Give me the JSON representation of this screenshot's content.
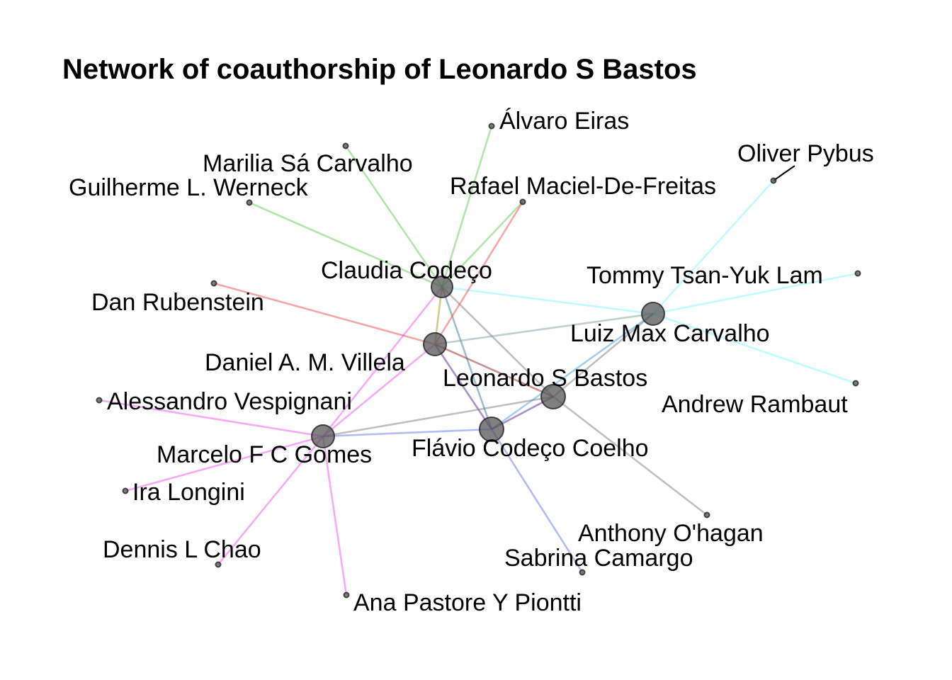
{
  "title": "Network of coauthorship of Leonardo S Bastos",
  "colors": {
    "edge_gray": "#7f7f7f",
    "edge_cyan": "#7ff7ff",
    "edge_green": "#66cc55",
    "edge_red": "#e85050",
    "edge_magenta": "#ef55ef",
    "edge_blue": "#6677ee",
    "edge_steel": "#3a7aa0",
    "edge_olive": "#999922",
    "edge_grayblue": "#7f9f9f",
    "edge_purple": "#552299",
    "edge_darkred": "#992222",
    "edge_skyblue": "#44a0e0",
    "node_fill": "#555555"
  },
  "nodes": [
    {
      "id": "leonardo",
      "label": "Leonardo S Bastos"
    },
    {
      "id": "claudia",
      "label": "Claudia Codeço"
    },
    {
      "id": "daniel",
      "label": "Daniel A. M. Villela"
    },
    {
      "id": "luizmax",
      "label": "Luiz Max Carvalho"
    },
    {
      "id": "flavio",
      "label": "Flávio Codeço Coelho"
    },
    {
      "id": "marcelo",
      "label": "Marcelo F C Gomes"
    },
    {
      "id": "alvaro",
      "label": "Álvaro Eiras"
    },
    {
      "id": "marilia",
      "label": "Marilia Sá Carvalho"
    },
    {
      "id": "guilherme",
      "label": "Guilherme L. Werneck"
    },
    {
      "id": "rafael",
      "label": "Rafael Maciel-De-Freitas"
    },
    {
      "id": "oliver",
      "label": "Oliver Pybus"
    },
    {
      "id": "tommy",
      "label": "Tommy Tsan-Yuk Lam"
    },
    {
      "id": "dan",
      "label": "Dan Rubenstein"
    },
    {
      "id": "andrew",
      "label": "Andrew Rambaut"
    },
    {
      "id": "alessandro",
      "label": "Alessandro Vespignani"
    },
    {
      "id": "ira",
      "label": "Ira Longini"
    },
    {
      "id": "dennis",
      "label": "Dennis L Chao"
    },
    {
      "id": "ana",
      "label": "Ana Pastore Y Piontti"
    },
    {
      "id": "anthony",
      "label": "Anthony O'hagan"
    },
    {
      "id": "sabrina",
      "label": "Sabrina Camargo"
    }
  ],
  "edges": [
    {
      "from": "claudia",
      "to": "alvaro",
      "color": "edge_green"
    },
    {
      "from": "claudia",
      "to": "marilia",
      "color": "edge_green"
    },
    {
      "from": "claudia",
      "to": "guilherme",
      "color": "edge_green"
    },
    {
      "from": "claudia",
      "to": "rafael",
      "color": "edge_green"
    },
    {
      "from": "claudia",
      "to": "luizmax",
      "color": "edge_cyan"
    },
    {
      "from": "claudia",
      "to": "daniel",
      "color": "edge_olive"
    },
    {
      "from": "claudia",
      "to": "flavio",
      "color": "edge_steel"
    },
    {
      "from": "claudia",
      "to": "leonardo",
      "color": "edge_gray"
    },
    {
      "from": "claudia",
      "to": "marcelo",
      "color": "edge_magenta"
    },
    {
      "from": "daniel",
      "to": "rafael",
      "color": "edge_red"
    },
    {
      "from": "daniel",
      "to": "dan",
      "color": "edge_red"
    },
    {
      "from": "daniel",
      "to": "leonardo",
      "color": "edge_darkred"
    },
    {
      "from": "daniel",
      "to": "flavio",
      "color": "edge_purple"
    },
    {
      "from": "daniel",
      "to": "luizmax",
      "color": "edge_grayblue"
    },
    {
      "from": "daniel",
      "to": "marcelo",
      "color": "edge_magenta"
    },
    {
      "from": "luizmax",
      "to": "oliver",
      "color": "edge_cyan"
    },
    {
      "from": "luizmax",
      "to": "tommy",
      "color": "edge_cyan"
    },
    {
      "from": "luizmax",
      "to": "andrew",
      "color": "edge_cyan"
    },
    {
      "from": "luizmax",
      "to": "leonardo",
      "color": "edge_gray"
    },
    {
      "from": "luizmax",
      "to": "flavio",
      "color": "edge_skyblue"
    },
    {
      "from": "leonardo",
      "to": "marcelo",
      "color": "edge_gray"
    },
    {
      "from": "leonardo",
      "to": "flavio",
      "color": "edge_purple"
    },
    {
      "from": "leonardo",
      "to": "anthony",
      "color": "edge_gray"
    },
    {
      "from": "flavio",
      "to": "marcelo",
      "color": "edge_blue"
    },
    {
      "from": "flavio",
      "to": "sabrina",
      "color": "edge_blue"
    },
    {
      "from": "marcelo",
      "to": "alessandro",
      "color": "edge_magenta"
    },
    {
      "from": "marcelo",
      "to": "ira",
      "color": "edge_magenta"
    },
    {
      "from": "marcelo",
      "to": "dennis",
      "color": "edge_magenta"
    },
    {
      "from": "marcelo",
      "to": "ana",
      "color": "edge_magenta"
    }
  ]
}
